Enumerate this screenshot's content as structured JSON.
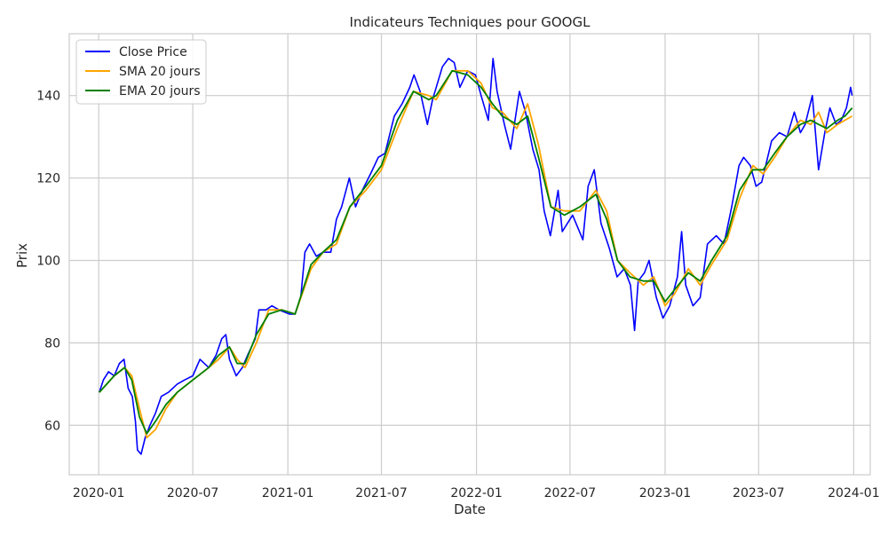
{
  "chart_data": {
    "type": "line",
    "title": "Indicateurs Techniques pour GOOGL",
    "xlabel": "Date",
    "ylabel": "Prix",
    "x_range": [
      "2019-11-05",
      "2024-02-02"
    ],
    "ylim": [
      48,
      155
    ],
    "x_ticks": [
      "2020-01",
      "2020-07",
      "2021-01",
      "2021-07",
      "2022-01",
      "2022-07",
      "2023-01",
      "2023-07",
      "2024-01"
    ],
    "x_tick_dates": [
      "2020-01-01",
      "2020-07-01",
      "2021-01-01",
      "2021-07-01",
      "2022-01-01",
      "2022-07-01",
      "2023-01-01",
      "2023-07-01",
      "2024-01-01"
    ],
    "y_ticks": [
      60,
      80,
      100,
      120,
      140
    ],
    "grid": true,
    "legend_position": "top-left",
    "series": [
      {
        "name": "Close Price",
        "color": "#0000ff",
        "points": [
          [
            "2020-01-02",
            68
          ],
          [
            "2020-01-10",
            71
          ],
          [
            "2020-01-20",
            73
          ],
          [
            "2020-01-31",
            72
          ],
          [
            "2020-02-10",
            75
          ],
          [
            "2020-02-19",
            76
          ],
          [
            "2020-02-27",
            69
          ],
          [
            "2020-03-06",
            67
          ],
          [
            "2020-03-12",
            61
          ],
          [
            "2020-03-16",
            54
          ],
          [
            "2020-03-23",
            53
          ],
          [
            "2020-03-31",
            57
          ],
          [
            "2020-04-09",
            60
          ],
          [
            "2020-04-20",
            63
          ],
          [
            "2020-05-01",
            67
          ],
          [
            "2020-05-15",
            68
          ],
          [
            "2020-06-01",
            70
          ],
          [
            "2020-06-15",
            71
          ],
          [
            "2020-07-01",
            72
          ],
          [
            "2020-07-15",
            76
          ],
          [
            "2020-08-01",
            74
          ],
          [
            "2020-08-15",
            77
          ],
          [
            "2020-08-26",
            81
          ],
          [
            "2020-09-03",
            82
          ],
          [
            "2020-09-10",
            76
          ],
          [
            "2020-09-23",
            72
          ],
          [
            "2020-10-05",
            74
          ],
          [
            "2020-10-15",
            77
          ],
          [
            "2020-10-30",
            81
          ],
          [
            "2020-11-06",
            88
          ],
          [
            "2020-11-20",
            88
          ],
          [
            "2020-12-01",
            89
          ],
          [
            "2020-12-15",
            88
          ],
          [
            "2021-01-04",
            87
          ],
          [
            "2021-01-15",
            87
          ],
          [
            "2021-01-26",
            91
          ],
          [
            "2021-02-03",
            102
          ],
          [
            "2021-02-12",
            104
          ],
          [
            "2021-02-25",
            101
          ],
          [
            "2021-03-10",
            102
          ],
          [
            "2021-03-25",
            102
          ],
          [
            "2021-04-05",
            110
          ],
          [
            "2021-04-15",
            113
          ],
          [
            "2021-04-30",
            120
          ],
          [
            "2021-05-12",
            113
          ],
          [
            "2021-05-25",
            117
          ],
          [
            "2021-06-10",
            121
          ],
          [
            "2021-06-25",
            125
          ],
          [
            "2021-07-08",
            126
          ],
          [
            "2021-07-26",
            135
          ],
          [
            "2021-08-10",
            138
          ],
          [
            "2021-08-25",
            142
          ],
          [
            "2021-09-02",
            145
          ],
          [
            "2021-09-14",
            141
          ],
          [
            "2021-09-28",
            133
          ],
          [
            "2021-10-08",
            139
          ],
          [
            "2021-10-27",
            147
          ],
          [
            "2021-11-08",
            149
          ],
          [
            "2021-11-19",
            148
          ],
          [
            "2021-11-30",
            142
          ],
          [
            "2021-12-15",
            146
          ],
          [
            "2021-12-30",
            145
          ],
          [
            "2022-01-10",
            140
          ],
          [
            "2022-01-24",
            134
          ],
          [
            "2022-02-02",
            149
          ],
          [
            "2022-02-10",
            141
          ],
          [
            "2022-02-24",
            133
          ],
          [
            "2022-03-08",
            127
          ],
          [
            "2022-03-25",
            141
          ],
          [
            "2022-04-06",
            136
          ],
          [
            "2022-04-20",
            127
          ],
          [
            "2022-05-02",
            122
          ],
          [
            "2022-05-12",
            112
          ],
          [
            "2022-05-24",
            106
          ],
          [
            "2022-06-08",
            117
          ],
          [
            "2022-06-16",
            107
          ],
          [
            "2022-07-06",
            111
          ],
          [
            "2022-07-26",
            105
          ],
          [
            "2022-08-05",
            118
          ],
          [
            "2022-08-17",
            122
          ],
          [
            "2022-08-30",
            109
          ],
          [
            "2022-09-15",
            103
          ],
          [
            "2022-09-30",
            96
          ],
          [
            "2022-10-14",
            98
          ],
          [
            "2022-10-26",
            94
          ],
          [
            "2022-11-03",
            83
          ],
          [
            "2022-11-10",
            95
          ],
          [
            "2022-11-22",
            97
          ],
          [
            "2022-12-01",
            100
          ],
          [
            "2022-12-15",
            91
          ],
          [
            "2022-12-28",
            86
          ],
          [
            "2023-01-10",
            89
          ],
          [
            "2023-01-25",
            96
          ],
          [
            "2023-02-02",
            107
          ],
          [
            "2023-02-10",
            94
          ],
          [
            "2023-02-24",
            89
          ],
          [
            "2023-03-10",
            91
          ],
          [
            "2023-03-24",
            104
          ],
          [
            "2023-04-10",
            106
          ],
          [
            "2023-04-25",
            104
          ],
          [
            "2023-05-10",
            113
          ],
          [
            "2023-05-24",
            123
          ],
          [
            "2023-06-02",
            125
          ],
          [
            "2023-06-15",
            123
          ],
          [
            "2023-06-26",
            118
          ],
          [
            "2023-07-07",
            119
          ],
          [
            "2023-07-26",
            129
          ],
          [
            "2023-08-10",
            131
          ],
          [
            "2023-08-25",
            130
          ],
          [
            "2023-09-08",
            136
          ],
          [
            "2023-09-20",
            131
          ],
          [
            "2023-09-29",
            133
          ],
          [
            "2023-10-13",
            140
          ],
          [
            "2023-10-25",
            122
          ],
          [
            "2023-11-06",
            131
          ],
          [
            "2023-11-16",
            137
          ],
          [
            "2023-11-28",
            133
          ],
          [
            "2023-12-08",
            134
          ],
          [
            "2023-12-18",
            137
          ],
          [
            "2023-12-26",
            142
          ],
          [
            "2023-12-29",
            140
          ]
        ]
      },
      {
        "name": "SMA 20 jours",
        "color": "#ffa500",
        "points": [
          [
            "2020-01-02",
            68
          ],
          [
            "2020-01-31",
            72
          ],
          [
            "2020-02-20",
            74
          ],
          [
            "2020-03-05",
            72
          ],
          [
            "2020-03-20",
            64
          ],
          [
            "2020-04-03",
            57
          ],
          [
            "2020-04-20",
            59
          ],
          [
            "2020-05-10",
            64
          ],
          [
            "2020-06-01",
            68
          ],
          [
            "2020-07-01",
            71
          ],
          [
            "2020-08-01",
            74
          ],
          [
            "2020-08-20",
            76
          ],
          [
            "2020-09-10",
            79
          ],
          [
            "2020-09-25",
            76
          ],
          [
            "2020-10-10",
            74
          ],
          [
            "2020-11-01",
            80
          ],
          [
            "2020-11-25",
            88
          ],
          [
            "2020-12-20",
            88
          ],
          [
            "2021-01-15",
            87
          ],
          [
            "2021-02-15",
            98
          ],
          [
            "2021-03-10",
            102
          ],
          [
            "2021-04-05",
            104
          ],
          [
            "2021-05-01",
            113
          ],
          [
            "2021-06-01",
            117
          ],
          [
            "2021-07-01",
            122
          ],
          [
            "2021-08-01",
            132
          ],
          [
            "2021-09-01",
            141
          ],
          [
            "2021-10-01",
            140
          ],
          [
            "2021-10-15",
            139
          ],
          [
            "2021-11-15",
            146
          ],
          [
            "2021-12-15",
            146
          ],
          [
            "2022-01-10",
            143
          ],
          [
            "2022-02-01",
            137
          ],
          [
            "2022-02-20",
            136
          ],
          [
            "2022-03-20",
            132
          ],
          [
            "2022-04-10",
            138
          ],
          [
            "2022-05-01",
            128
          ],
          [
            "2022-05-25",
            113
          ],
          [
            "2022-06-20",
            112
          ],
          [
            "2022-07-20",
            112
          ],
          [
            "2022-08-20",
            117
          ],
          [
            "2022-09-10",
            112
          ],
          [
            "2022-10-01",
            100
          ],
          [
            "2022-10-25",
            97
          ],
          [
            "2022-11-20",
            94
          ],
          [
            "2022-12-10",
            96
          ],
          [
            "2023-01-01",
            89
          ],
          [
            "2023-01-20",
            92
          ],
          [
            "2023-02-15",
            98
          ],
          [
            "2023-03-10",
            94
          ],
          [
            "2023-04-01",
            99
          ],
          [
            "2023-05-01",
            105
          ],
          [
            "2023-05-25",
            115
          ],
          [
            "2023-06-20",
            123
          ],
          [
            "2023-07-10",
            121
          ],
          [
            "2023-08-01",
            125
          ],
          [
            "2023-08-25",
            130
          ],
          [
            "2023-09-20",
            134
          ],
          [
            "2023-10-10",
            133
          ],
          [
            "2023-10-25",
            136
          ],
          [
            "2023-11-10",
            131
          ],
          [
            "2023-12-01",
            133
          ],
          [
            "2023-12-15",
            134
          ],
          [
            "2023-12-29",
            135
          ]
        ]
      },
      {
        "name": "EMA 20 jours",
        "color": "#008000",
        "points": [
          [
            "2020-01-02",
            68
          ],
          [
            "2020-01-31",
            72
          ],
          [
            "2020-02-20",
            74
          ],
          [
            "2020-03-05",
            71
          ],
          [
            "2020-03-20",
            62
          ],
          [
            "2020-04-03",
            58
          ],
          [
            "2020-04-20",
            61
          ],
          [
            "2020-05-10",
            65
          ],
          [
            "2020-06-01",
            68
          ],
          [
            "2020-07-01",
            71
          ],
          [
            "2020-08-01",
            74
          ],
          [
            "2020-08-20",
            77
          ],
          [
            "2020-09-10",
            79
          ],
          [
            "2020-09-25",
            75
          ],
          [
            "2020-10-10",
            75
          ],
          [
            "2020-11-01",
            82
          ],
          [
            "2020-11-25",
            87
          ],
          [
            "2020-12-20",
            88
          ],
          [
            "2021-01-15",
            87
          ],
          [
            "2021-02-15",
            99
          ],
          [
            "2021-03-10",
            102
          ],
          [
            "2021-04-05",
            105
          ],
          [
            "2021-05-01",
            113
          ],
          [
            "2021-06-01",
            118
          ],
          [
            "2021-07-01",
            123
          ],
          [
            "2021-08-01",
            134
          ],
          [
            "2021-09-01",
            141
          ],
          [
            "2021-10-01",
            139
          ],
          [
            "2021-10-15",
            140
          ],
          [
            "2021-11-15",
            146
          ],
          [
            "2021-12-15",
            145
          ],
          [
            "2022-01-10",
            142
          ],
          [
            "2022-02-01",
            138
          ],
          [
            "2022-02-20",
            135
          ],
          [
            "2022-03-20",
            133
          ],
          [
            "2022-04-10",
            135
          ],
          [
            "2022-05-01",
            125
          ],
          [
            "2022-05-25",
            113
          ],
          [
            "2022-06-20",
            111
          ],
          [
            "2022-07-20",
            113
          ],
          [
            "2022-08-20",
            116
          ],
          [
            "2022-09-10",
            110
          ],
          [
            "2022-10-01",
            100
          ],
          [
            "2022-10-25",
            96
          ],
          [
            "2022-11-20",
            95
          ],
          [
            "2022-12-10",
            95
          ],
          [
            "2023-01-01",
            90
          ],
          [
            "2023-01-20",
            93
          ],
          [
            "2023-02-15",
            97
          ],
          [
            "2023-03-10",
            95
          ],
          [
            "2023-04-01",
            100
          ],
          [
            "2023-05-01",
            106
          ],
          [
            "2023-05-25",
            117
          ],
          [
            "2023-06-20",
            122
          ],
          [
            "2023-07-10",
            122
          ],
          [
            "2023-08-01",
            126
          ],
          [
            "2023-08-25",
            130
          ],
          [
            "2023-09-20",
            133
          ],
          [
            "2023-10-10",
            134
          ],
          [
            "2023-10-25",
            133
          ],
          [
            "2023-11-10",
            132
          ],
          [
            "2023-12-01",
            134
          ],
          [
            "2023-12-15",
            135
          ],
          [
            "2023-12-29",
            137
          ]
        ]
      }
    ]
  }
}
